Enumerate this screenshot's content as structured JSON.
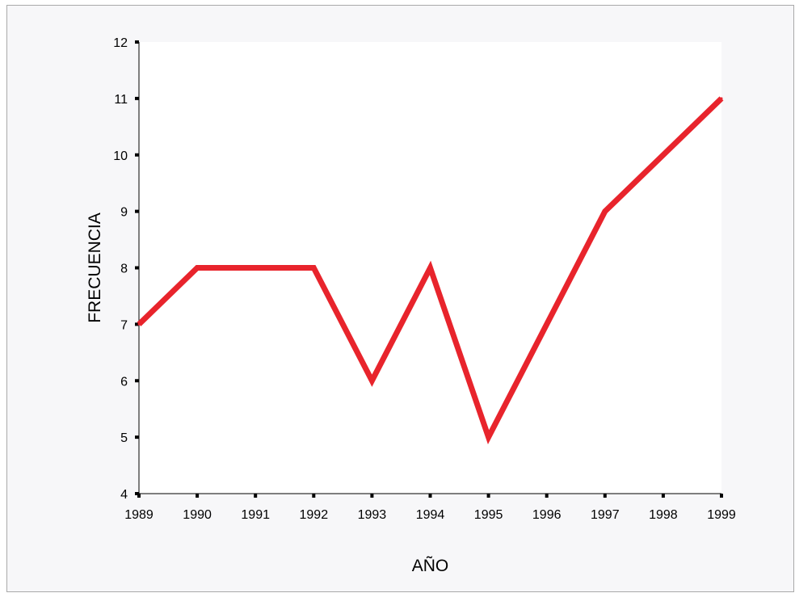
{
  "chart_data": {
    "type": "line",
    "title": "",
    "xlabel": "AÑO",
    "ylabel": "FRECUENCIA",
    "categories": [
      "1989",
      "1990",
      "1991",
      "1992",
      "1993",
      "1994",
      "1995",
      "1996",
      "1997",
      "1998",
      "1999"
    ],
    "series": [
      {
        "values": [
          7,
          8,
          8,
          8,
          6,
          8,
          5,
          7,
          9,
          10,
          11
        ]
      }
    ],
    "ylim": [
      4,
      12
    ],
    "yticks": [
      4,
      5,
      6,
      7,
      8,
      9,
      10,
      11,
      12
    ],
    "grid": false,
    "legend": "none",
    "colors": {
      "line": "#e8242c",
      "plot_background": "#ffffff",
      "page_background": "#f7f7f9",
      "axis": "#000000"
    }
  }
}
